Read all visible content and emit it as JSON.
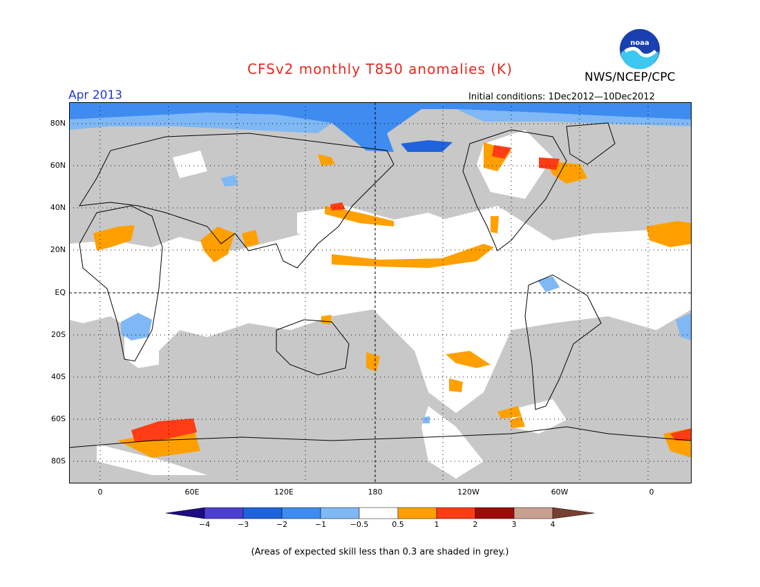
{
  "title": "CFSv2 monthly T850 anomalies (K)",
  "org": "NWS/NCEP/CPC",
  "period": "Apr 2013",
  "initial_conditions": "Initial conditions: 1Dec2012—10Dec2012",
  "footnote": "(Areas of expected skill less than 0.3 are shaded in grey.)",
  "logo_text": "noaa",
  "lat_labels": [
    "80N",
    "60N",
    "40N",
    "20N",
    "EQ",
    "20S",
    "40S",
    "60S",
    "80S"
  ],
  "lon_labels": [
    "0",
    "60E",
    "120E",
    "180",
    "120W",
    "60W",
    "0"
  ],
  "colorbar": {
    "labels": [
      "−4",
      "−3",
      "−2",
      "−1",
      "−0.5",
      "0.5",
      "1",
      "2",
      "3",
      "4"
    ],
    "colors": [
      "#1e0c82",
      "#4c3fd0",
      "#1f63dc",
      "#3f8cf0",
      "#7fb8f4",
      "#ffffff",
      "#ffa000",
      "#ff3c14",
      "#a00a0a",
      "#c8a090",
      "#784030"
    ]
  },
  "colors": {
    "grey_skill": "#c8c8c8",
    "title": "#e8281e",
    "period": "#2236d6"
  }
}
